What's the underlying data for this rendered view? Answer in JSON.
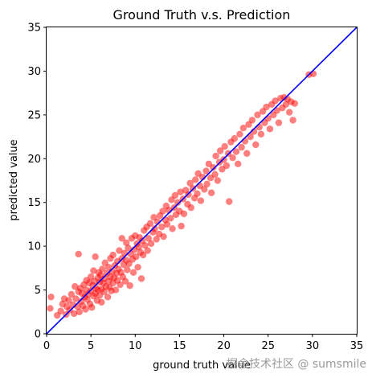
{
  "chart_data": {
    "type": "scatter",
    "title": "Ground Truth v.s. Prediction",
    "xlabel": "ground truth value",
    "ylabel": "predicted value",
    "xlim": [
      0,
      35
    ],
    "ylim": [
      0,
      35
    ],
    "xticks": [
      0,
      5,
      10,
      15,
      20,
      25,
      30,
      35
    ],
    "yticks": [
      0,
      5,
      10,
      15,
      20,
      25,
      30,
      35
    ],
    "grid": false,
    "series": [
      {
        "marker_color": "#ff0000",
        "points": [
          [
            0.4,
            2.9
          ],
          [
            0.5,
            4.2
          ],
          [
            1.2,
            2.1
          ],
          [
            1.6,
            2.6
          ],
          [
            1.8,
            3.4
          ],
          [
            2.0,
            4.0
          ],
          [
            2.2,
            2.2
          ],
          [
            2.3,
            3.1
          ],
          [
            2.5,
            3.8
          ],
          [
            2.6,
            2.7
          ],
          [
            2.8,
            4.5
          ],
          [
            3.0,
            3.3
          ],
          [
            3.1,
            2.3
          ],
          [
            3.2,
            5.4
          ],
          [
            3.3,
            4.0
          ],
          [
            3.5,
            3.1
          ],
          [
            3.6,
            4.8
          ],
          [
            3.6,
            9.1
          ],
          [
            3.7,
            2.5
          ],
          [
            3.8,
            5.2
          ],
          [
            3.9,
            3.7
          ],
          [
            4.0,
            4.6
          ],
          [
            4.1,
            3.2
          ],
          [
            4.2,
            5.6
          ],
          [
            4.3,
            4.2
          ],
          [
            4.4,
            2.8
          ],
          [
            4.5,
            5.0
          ],
          [
            4.5,
            6.1
          ],
          [
            4.6,
            3.9
          ],
          [
            4.7,
            4.5
          ],
          [
            4.8,
            5.8
          ],
          [
            4.9,
            3.4
          ],
          [
            5.0,
            4.9
          ],
          [
            5.0,
            6.5
          ],
          [
            5.1,
            3.0
          ],
          [
            5.2,
            5.5
          ],
          [
            5.3,
            4.3
          ],
          [
            5.3,
            7.2
          ],
          [
            5.4,
            6.0
          ],
          [
            5.5,
            4.6
          ],
          [
            5.5,
            8.8
          ],
          [
            5.6,
            5.2
          ],
          [
            5.7,
            3.8
          ],
          [
            5.8,
            6.4
          ],
          [
            5.8,
            5.0
          ],
          [
            5.9,
            7.0
          ],
          [
            6.0,
            4.4
          ],
          [
            6.0,
            5.9
          ],
          [
            6.1,
            6.7
          ],
          [
            6.2,
            5.1
          ],
          [
            6.2,
            3.6
          ],
          [
            6.3,
            7.4
          ],
          [
            6.4,
            5.8
          ],
          [
            6.5,
            6.3
          ],
          [
            6.5,
            4.8
          ],
          [
            6.6,
            8.1
          ],
          [
            6.7,
            5.4
          ],
          [
            6.8,
            6.9
          ],
          [
            6.9,
            4.2
          ],
          [
            7.0,
            6.0
          ],
          [
            7.0,
            7.6
          ],
          [
            7.1,
            5.3
          ],
          [
            7.2,
            8.6
          ],
          [
            7.2,
            6.5
          ],
          [
            7.3,
            4.9
          ],
          [
            7.4,
            7.1
          ],
          [
            7.5,
            5.8
          ],
          [
            7.5,
            9.0
          ],
          [
            7.6,
            6.4
          ],
          [
            7.7,
            7.8
          ],
          [
            7.8,
            5.0
          ],
          [
            7.9,
            6.9
          ],
          [
            8.0,
            8.3
          ],
          [
            8.0,
            6.1
          ],
          [
            8.1,
            7.4
          ],
          [
            8.2,
            9.5
          ],
          [
            8.3,
            5.6
          ],
          [
            8.4,
            7.0
          ],
          [
            8.5,
            8.6
          ],
          [
            8.5,
            10.9
          ],
          [
            8.6,
            6.5
          ],
          [
            8.7,
            7.9
          ],
          [
            8.8,
            9.2
          ],
          [
            8.9,
            6.0
          ],
          [
            9.0,
            8.4
          ],
          [
            9.0,
            10.4
          ],
          [
            9.1,
            7.3
          ],
          [
            9.2,
            9.8
          ],
          [
            9.3,
            8.0
          ],
          [
            9.4,
            5.5
          ],
          [
            9.5,
            9.1
          ],
          [
            9.6,
            10.9
          ],
          [
            9.7,
            8.5
          ],
          [
            9.8,
            7.0
          ],
          [
            9.9,
            9.6
          ],
          [
            10.0,
            11.2
          ],
          [
            10.1,
            8.8
          ],
          [
            10.2,
            10.3
          ],
          [
            10.3,
            7.6
          ],
          [
            10.4,
            9.9
          ],
          [
            10.5,
            11.0
          ],
          [
            10.6,
            9.3
          ],
          [
            10.7,
            6.3
          ],
          [
            10.8,
            10.6
          ],
          [
            10.9,
            9.0
          ],
          [
            11.0,
            11.8
          ],
          [
            11.1,
            10.1
          ],
          [
            11.3,
            12.2
          ],
          [
            11.4,
            9.5
          ],
          [
            11.5,
            10.9
          ],
          [
            11.7,
            12.6
          ],
          [
            11.8,
            10.3
          ],
          [
            12.0,
            11.6
          ],
          [
            12.1,
            13.3
          ],
          [
            12.2,
            12.0
          ],
          [
            12.4,
            10.8
          ],
          [
            12.5,
            12.8
          ],
          [
            12.7,
            11.4
          ],
          [
            12.8,
            13.5
          ],
          [
            13.0,
            12.2
          ],
          [
            13.1,
            14.0
          ],
          [
            13.2,
            11.1
          ],
          [
            13.4,
            13.0
          ],
          [
            13.5,
            14.6
          ],
          [
            13.6,
            12.5
          ],
          [
            13.8,
            14.1
          ],
          [
            14.0,
            13.2
          ],
          [
            14.1,
            15.3
          ],
          [
            14.2,
            12.0
          ],
          [
            14.4,
            14.4
          ],
          [
            14.5,
            15.8
          ],
          [
            14.6,
            13.6
          ],
          [
            14.8,
            15.0
          ],
          [
            15.0,
            14.0
          ],
          [
            15.1,
            16.2
          ],
          [
            15.2,
            12.3
          ],
          [
            15.4,
            15.4
          ],
          [
            15.5,
            13.7
          ],
          [
            15.7,
            16.4
          ],
          [
            15.9,
            14.8
          ],
          [
            16.0,
            15.9
          ],
          [
            16.2,
            17.2
          ],
          [
            16.3,
            14.4
          ],
          [
            16.5,
            16.6
          ],
          [
            16.7,
            15.5
          ],
          [
            16.8,
            17.6
          ],
          [
            17.0,
            16.0
          ],
          [
            17.1,
            18.3
          ],
          [
            17.3,
            16.9
          ],
          [
            17.4,
            15.2
          ],
          [
            17.6,
            17.9
          ],
          [
            17.8,
            16.5
          ],
          [
            18.0,
            18.6
          ],
          [
            18.1,
            17.1
          ],
          [
            18.3,
            19.4
          ],
          [
            18.5,
            17.8
          ],
          [
            18.6,
            16.1
          ],
          [
            18.8,
            19.0
          ],
          [
            19.0,
            18.2
          ],
          [
            19.1,
            20.3
          ],
          [
            19.3,
            17.5
          ],
          [
            19.5,
            19.6
          ],
          [
            19.6,
            20.9
          ],
          [
            19.8,
            18.8
          ],
          [
            20.0,
            19.9
          ],
          [
            20.1,
            21.4
          ],
          [
            20.3,
            19.2
          ],
          [
            20.5,
            20.6
          ],
          [
            20.6,
            15.1
          ],
          [
            20.8,
            21.9
          ],
          [
            21.0,
            20.1
          ],
          [
            21.2,
            22.3
          ],
          [
            21.4,
            20.8
          ],
          [
            21.6,
            19.4
          ],
          [
            21.8,
            22.8
          ],
          [
            22.0,
            21.3
          ],
          [
            22.2,
            23.5
          ],
          [
            22.4,
            22.0
          ],
          [
            22.6,
            20.6
          ],
          [
            22.8,
            23.9
          ],
          [
            23.0,
            22.5
          ],
          [
            23.2,
            24.4
          ],
          [
            23.4,
            23.1
          ],
          [
            23.6,
            21.6
          ],
          [
            23.8,
            25.0
          ],
          [
            24.0,
            23.6
          ],
          [
            24.2,
            22.8
          ],
          [
            24.4,
            25.4
          ],
          [
            24.6,
            24.1
          ],
          [
            24.8,
            25.9
          ],
          [
            25.0,
            24.6
          ],
          [
            25.2,
            23.4
          ],
          [
            25.4,
            26.2
          ],
          [
            25.6,
            25.0
          ],
          [
            25.8,
            26.6
          ],
          [
            26.0,
            25.5
          ],
          [
            26.2,
            24.1
          ],
          [
            26.4,
            26.9
          ],
          [
            26.6,
            25.8
          ],
          [
            26.8,
            27.0
          ],
          [
            27.0,
            26.2
          ],
          [
            27.2,
            26.8
          ],
          [
            27.4,
            25.3
          ],
          [
            27.6,
            26.5
          ],
          [
            27.8,
            24.4
          ],
          [
            28.0,
            26.3
          ],
          [
            29.6,
            29.6
          ],
          [
            30.1,
            29.7
          ]
        ]
      },
      {
        "line_color": "#0000ff",
        "x": [
          0,
          35
        ],
        "y": [
          0,
          35
        ]
      }
    ]
  },
  "watermark": "掘金技术社区 @ sumsmile"
}
